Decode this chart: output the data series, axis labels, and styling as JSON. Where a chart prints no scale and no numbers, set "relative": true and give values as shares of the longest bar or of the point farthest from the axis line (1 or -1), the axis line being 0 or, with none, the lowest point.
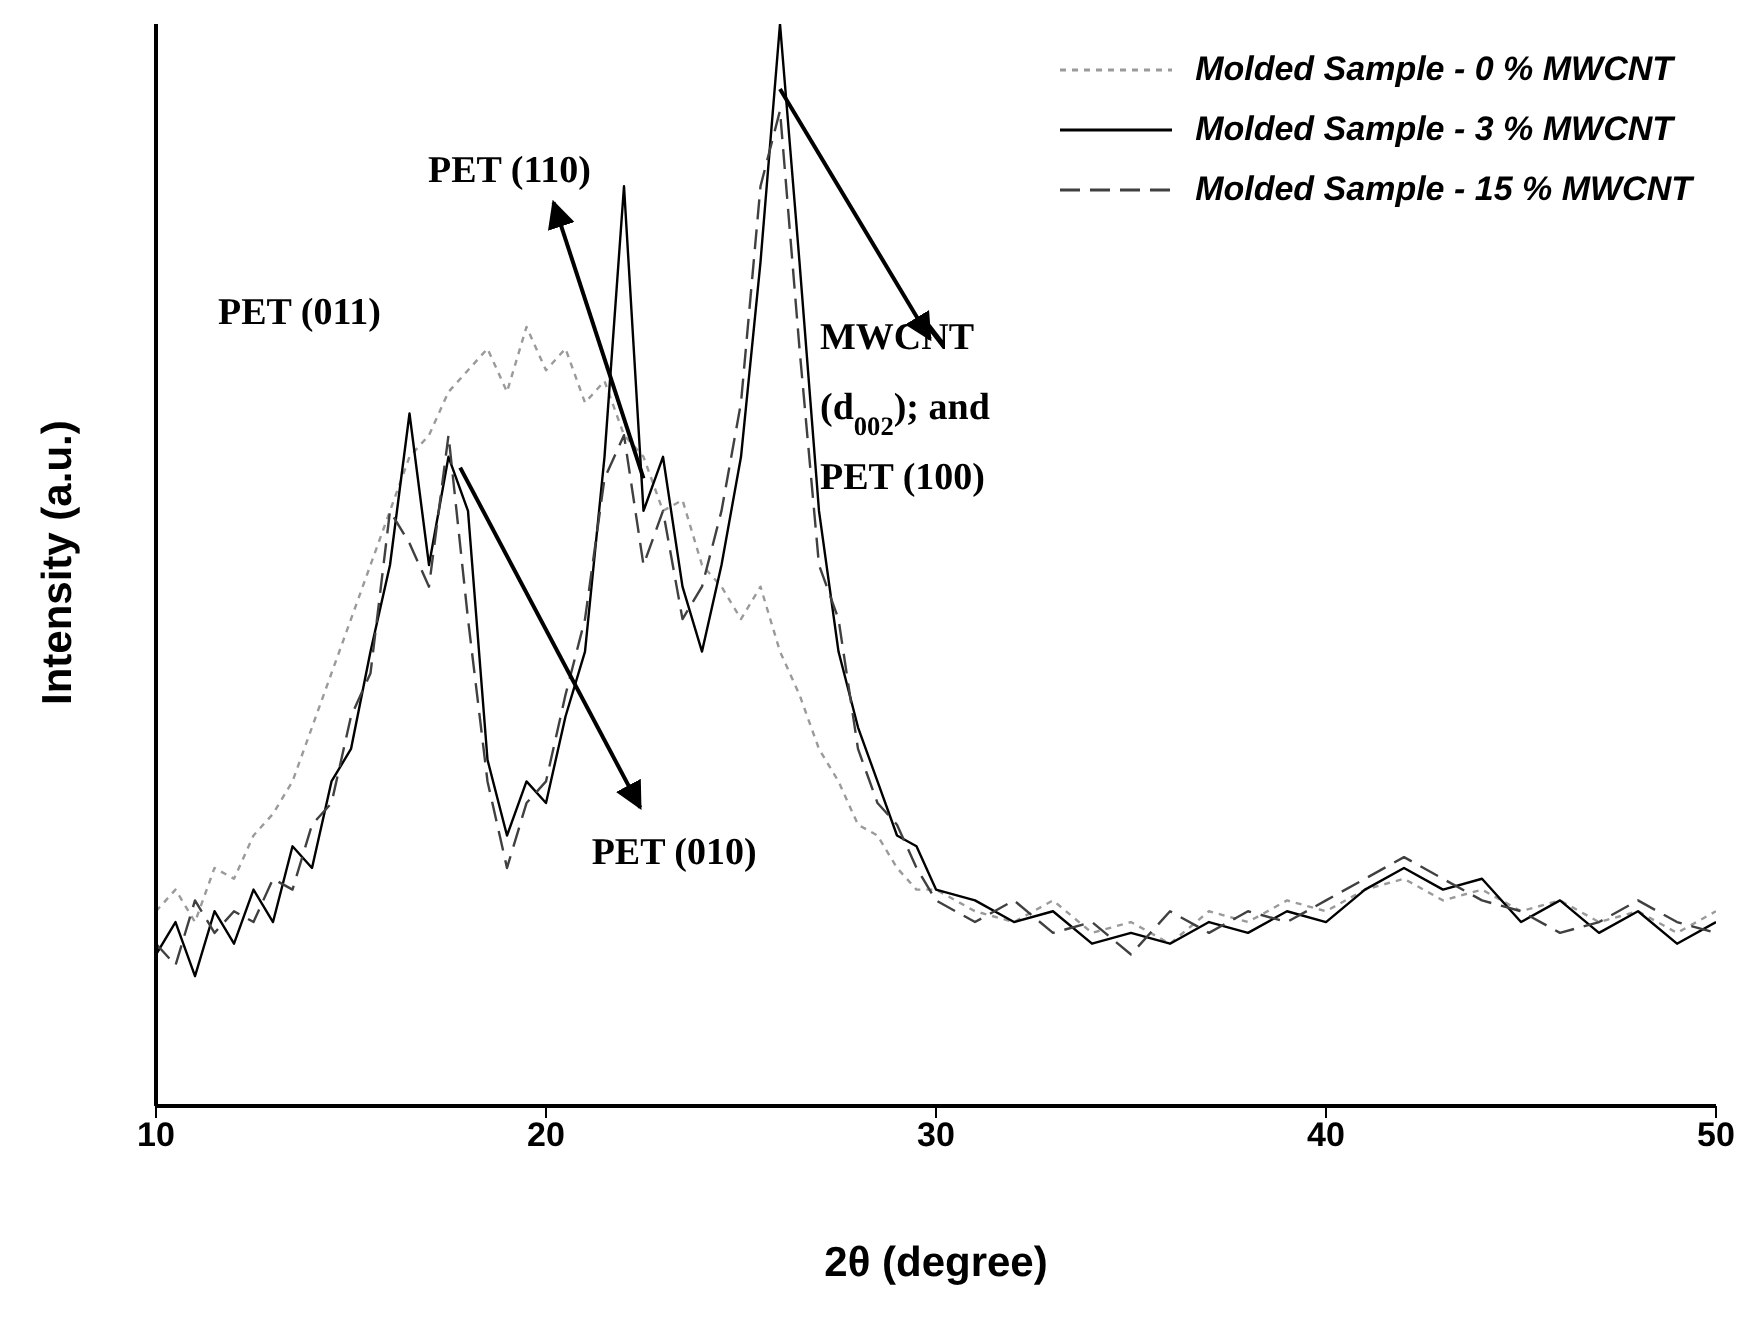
{
  "chart_data": {
    "type": "line",
    "relative": true,
    "xlabel": "2θ (degree)",
    "ylabel": "Intensity (a.u.)",
    "xlim": [
      10,
      50
    ],
    "xticks": [
      10,
      20,
      30,
      40,
      50
    ],
    "legend": "top right",
    "marker": "none",
    "x": [
      10,
      10.5,
      11,
      11.5,
      12,
      12.5,
      13,
      13.5,
      14,
      14.5,
      15,
      15.5,
      16,
      16.5,
      17,
      17.5,
      18,
      18.5,
      19,
      19.5,
      20,
      20.5,
      21,
      21.5,
      22,
      22.5,
      23,
      23.5,
      24,
      24.5,
      25,
      25.5,
      26,
      26.5,
      27,
      27.5,
      28,
      28.5,
      29,
      29.5,
      30,
      31,
      32,
      33,
      34,
      35,
      36,
      37,
      38,
      39,
      40,
      41,
      42,
      43,
      44,
      45,
      46,
      47,
      48,
      49,
      50
    ],
    "series": [
      {
        "name": "Molded Sample - 0 % MWCNT",
        "color": "#9a9a9a",
        "line_style": "dotted",
        "values": [
          0.18,
          0.2,
          0.17,
          0.22,
          0.21,
          0.25,
          0.27,
          0.3,
          0.35,
          0.4,
          0.45,
          0.5,
          0.55,
          0.6,
          0.62,
          0.66,
          0.68,
          0.7,
          0.66,
          0.72,
          0.68,
          0.7,
          0.65,
          0.67,
          0.62,
          0.6,
          0.55,
          0.56,
          0.5,
          0.48,
          0.45,
          0.48,
          0.42,
          0.38,
          0.33,
          0.3,
          0.26,
          0.25,
          0.22,
          0.2,
          0.2,
          0.18,
          0.17,
          0.19,
          0.16,
          0.17,
          0.15,
          0.18,
          0.17,
          0.19,
          0.18,
          0.2,
          0.21,
          0.19,
          0.2,
          0.18,
          0.19,
          0.17,
          0.18,
          0.16,
          0.18
        ]
      },
      {
        "name": "Molded Sample - 3 % MWCNT",
        "color": "#000000",
        "line_style": "solid",
        "values": [
          0.14,
          0.17,
          0.12,
          0.18,
          0.15,
          0.2,
          0.17,
          0.24,
          0.22,
          0.3,
          0.33,
          0.42,
          0.5,
          0.64,
          0.5,
          0.6,
          0.55,
          0.32,
          0.25,
          0.3,
          0.28,
          0.36,
          0.42,
          0.6,
          0.85,
          0.55,
          0.6,
          0.48,
          0.42,
          0.5,
          0.6,
          0.78,
          1.0,
          0.78,
          0.55,
          0.42,
          0.35,
          0.3,
          0.25,
          0.24,
          0.2,
          0.19,
          0.17,
          0.18,
          0.15,
          0.16,
          0.15,
          0.17,
          0.16,
          0.18,
          0.17,
          0.2,
          0.22,
          0.2,
          0.21,
          0.17,
          0.19,
          0.16,
          0.18,
          0.15,
          0.17
        ]
      },
      {
        "name": "Molded Sample - 15 % MWCNT",
        "color": "#404040",
        "line_style": "dashed",
        "values": [
          0.15,
          0.13,
          0.19,
          0.16,
          0.18,
          0.17,
          0.21,
          0.2,
          0.26,
          0.28,
          0.36,
          0.4,
          0.55,
          0.52,
          0.48,
          0.62,
          0.45,
          0.3,
          0.22,
          0.28,
          0.3,
          0.38,
          0.45,
          0.58,
          0.62,
          0.5,
          0.55,
          0.45,
          0.48,
          0.55,
          0.65,
          0.85,
          0.92,
          0.7,
          0.5,
          0.45,
          0.33,
          0.28,
          0.26,
          0.22,
          0.19,
          0.17,
          0.19,
          0.16,
          0.17,
          0.14,
          0.18,
          0.16,
          0.18,
          0.17,
          0.19,
          0.21,
          0.23,
          0.21,
          0.19,
          0.18,
          0.16,
          0.17,
          0.19,
          0.17,
          0.16
        ]
      }
    ],
    "annotations": [
      {
        "text": "PET (011)",
        "x": 16.5,
        "y": 0.64
      },
      {
        "text": "PET (110)",
        "x": 22.5,
        "y": 0.58
      },
      {
        "text": "PET (010)",
        "x": 17.8,
        "y": 0.59
      },
      {
        "text": "MWCNT (d$_{002}$); and PET (100)",
        "x": 26,
        "y": 0.94
      }
    ]
  }
}
